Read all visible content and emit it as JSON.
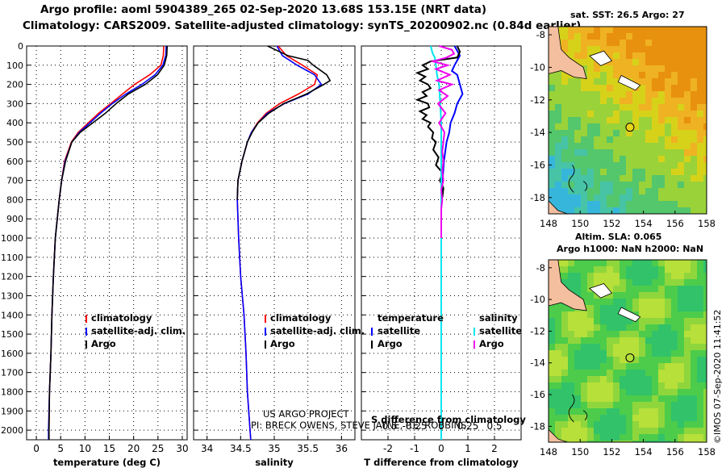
{
  "header": {
    "title_line1": "Argo profile: aoml 5904389_265 02-Sep-2020 13.68S 153.15E (NRT data)",
    "title_line2": "Climatology: CARS2009. Satellite-adjusted climatology: synTS_20200902.nc (0.84d earlier)"
  },
  "credit": "US ARGO PROJECT",
  "pi": "PI: BRECK OWENS, STEVE JAYNE, P.E. ROBBINS",
  "watermark": "©IMOS 07-Sep-2020 11:41:52",
  "colors": {
    "climatology": "#ff0000",
    "satellite": "#0000ff",
    "argo": "#000000",
    "sat_salinity": "#00e5ee",
    "argo_salinity": "#ee00ee",
    "land": "#f4bf9e"
  },
  "chart_data": [
    {
      "type": "line",
      "panel": "temperature",
      "xlabel": "temperature (deg C)",
      "ylabel": "depth",
      "xlim": [
        -2,
        31
      ],
      "ylim": [
        2050,
        0
      ],
      "xticks": [
        0,
        5,
        10,
        15,
        20,
        25,
        30
      ],
      "yticks": [
        0,
        100,
        200,
        300,
        400,
        500,
        600,
        700,
        800,
        900,
        1000,
        1100,
        1200,
        1300,
        1400,
        1500,
        1600,
        1700,
        1800,
        1900,
        2000
      ],
      "legend": [
        "climatology",
        "satellite-adj. clim.",
        "Argo"
      ],
      "series": [
        {
          "name": "climatology",
          "depth": [
            0,
            50,
            100,
            150,
            200,
            250,
            300,
            350,
            400,
            450,
            500,
            600,
            700,
            800,
            900,
            1000,
            1200,
            1400,
            1600,
            1800,
            2000,
            2050
          ],
          "values": [
            26.2,
            26.1,
            25.6,
            23.3,
            20.2,
            17.7,
            15.3,
            12.8,
            10.7,
            8.6,
            7.2,
            5.8,
            5.2,
            4.7,
            4.3,
            3.9,
            3.5,
            3.2,
            3.0,
            2.7,
            2.6,
            2.6
          ]
        },
        {
          "name": "satellite-adj. clim.",
          "depth": [
            0,
            50,
            100,
            150,
            200,
            250,
            300,
            350,
            400,
            450,
            500,
            600,
            700,
            800,
            900,
            1000,
            1200,
            1400,
            1600,
            1800,
            2000,
            2050
          ],
          "values": [
            26.7,
            26.6,
            26.0,
            24.4,
            21.7,
            18.4,
            15.6,
            13.2,
            11.0,
            8.8,
            7.3,
            5.9,
            5.2,
            4.7,
            4.3,
            3.9,
            3.5,
            3.2,
            3.0,
            2.7,
            2.5,
            2.5
          ]
        },
        {
          "name": "Argo",
          "depth": [
            0,
            50,
            100,
            150,
            200,
            250,
            300,
            350,
            400,
            450,
            500,
            600,
            700,
            800,
            900,
            1000,
            1200,
            1400,
            1600,
            1800,
            2000,
            2050
          ],
          "values": [
            26.9,
            26.8,
            26.3,
            24.9,
            22.4,
            18.9,
            16.4,
            14.2,
            11.6,
            9.0,
            7.3,
            6.0,
            5.2,
            4.7,
            4.3,
            3.9,
            3.5,
            3.2,
            3.0,
            2.7,
            2.6,
            2.6
          ]
        }
      ]
    },
    {
      "type": "line",
      "panel": "salinity",
      "xlabel": "salinity",
      "ylabel": "depth",
      "xlim": [
        33.8,
        36.2
      ],
      "ylim": [
        2050,
        0
      ],
      "xticks": [
        34,
        34.5,
        35,
        35.5,
        36
      ],
      "legend": [
        "climatology",
        "satellite-adj. clim.",
        "Argo"
      ],
      "series": [
        {
          "name": "climatology",
          "depth": [
            0,
            50,
            100,
            150,
            200,
            250,
            300,
            350,
            400,
            450,
            500,
            600,
            700,
            800,
            1000,
            1200,
            1400,
            1600,
            1800,
            2000,
            2050
          ],
          "values": [
            35.06,
            35.18,
            35.42,
            35.64,
            35.6,
            35.36,
            35.08,
            34.88,
            34.75,
            34.66,
            34.6,
            34.52,
            34.46,
            34.45,
            34.47,
            34.5,
            34.55,
            34.58,
            34.6,
            34.64,
            34.65
          ]
        },
        {
          "name": "satellite-adj. clim.",
          "depth": [
            0,
            50,
            100,
            150,
            200,
            250,
            300,
            350,
            400,
            450,
            500,
            600,
            700,
            800,
            1000,
            1200,
            1400,
            1600,
            1800,
            2000,
            2050
          ],
          "values": [
            35.04,
            35.12,
            35.34,
            35.6,
            35.7,
            35.5,
            35.15,
            34.9,
            34.76,
            34.66,
            34.6,
            34.52,
            34.46,
            34.45,
            34.47,
            34.5,
            34.55,
            34.58,
            34.6,
            34.64,
            34.65
          ]
        },
        {
          "name": "Argo",
          "depth": [
            0,
            25,
            50,
            75,
            100,
            150,
            180,
            200,
            250,
            300,
            350,
            400,
            450,
            500,
            600,
            700,
            800
          ],
          "values": [
            34.9,
            35.05,
            35.2,
            35.5,
            35.58,
            35.78,
            35.83,
            35.74,
            35.48,
            35.14,
            34.92,
            34.76,
            34.67,
            34.6,
            34.52,
            34.46,
            34.45
          ]
        }
      ]
    },
    {
      "type": "line",
      "panel": "difference",
      "xlabel": "T difference from climatology",
      "xlabel_top": "S difference from climatology",
      "xlim": [
        -3,
        3
      ],
      "ylim": [
        2050,
        0
      ],
      "xticks": [
        -2,
        -1,
        0,
        1,
        2
      ],
      "xticks_s": [
        -0.5,
        -0.25,
        0,
        0.25,
        0.5
      ],
      "legend_headers": [
        "temperature",
        "salinity"
      ],
      "legend_left": [
        "satellite",
        "Argo"
      ],
      "legend_right": [
        "satellite",
        "Argo"
      ],
      "series": [
        {
          "name": "T satellite",
          "depth": [
            0,
            50,
            100,
            130,
            150,
            200,
            250,
            300,
            350,
            400,
            450,
            500,
            550,
            600,
            700,
            800,
            1000,
            2050
          ],
          "values": [
            0.5,
            0.7,
            0.5,
            0.4,
            0.6,
            0.7,
            0.8,
            0.6,
            0.5,
            0.35,
            0.3,
            0.2,
            0.15,
            0.1,
            0.05,
            0,
            0,
            0
          ]
        },
        {
          "name": "T Argo",
          "depth": [
            0,
            30,
            60,
            80,
            100,
            120,
            140,
            160,
            180,
            200,
            220,
            240,
            260,
            280,
            300,
            320,
            340,
            360,
            380,
            400,
            420,
            450,
            480,
            500,
            540,
            580,
            620,
            660,
            700,
            740,
            780,
            800
          ],
          "values": [
            0.6,
            0.7,
            0.6,
            -0.4,
            -0.7,
            -0.5,
            -0.9,
            -0.6,
            -0.8,
            -0.5,
            -0.4,
            -0.7,
            -0.55,
            -0.9,
            -0.5,
            -0.45,
            -0.8,
            -0.55,
            -0.7,
            -0.4,
            -0.5,
            -0.3,
            -0.35,
            -0.2,
            -0.3,
            -0.1,
            -0.2,
            0.05,
            -0.05,
            0.08,
            0.05,
            0.02
          ]
        },
        {
          "name": "S satellite",
          "depth": [
            0,
            40,
            60,
            100,
            150,
            200,
            300,
            400,
            500,
            600,
            800,
            1000,
            2050
          ],
          "values": [
            -0.1,
            -0.08,
            -0.06,
            -0.05,
            -0.04,
            -0.02,
            -0.01,
            0,
            0,
            0,
            0,
            0,
            0
          ]
        },
        {
          "name": "S Argo",
          "depth": [
            0,
            20,
            40,
            60,
            80,
            100,
            120,
            150,
            180,
            200,
            230,
            260,
            300,
            350,
            400,
            450,
            500,
            550,
            600,
            650,
            700,
            750,
            800,
            850,
            900,
            950,
            1000
          ],
          "values": [
            -0.02,
            0.1,
            0.12,
            0.05,
            -0.08,
            0.06,
            -0.05,
            0.08,
            -0.04,
            0.1,
            -0.02,
            0.06,
            -0.03,
            0.04,
            -0.02,
            0.03,
            0.02,
            0.01,
            0.02,
            0.01,
            0.02,
            0.0,
            0.01,
            0.0,
            0.0,
            0.0,
            0.0
          ]
        }
      ]
    },
    {
      "type": "heatmap",
      "panel": "map-sst",
      "title": "sat. SST: 26.5 Argo: 27",
      "lon_range": [
        148,
        158
      ],
      "lat_range": [
        -19,
        -7.5
      ],
      "xticks": [
        148,
        150,
        152,
        154,
        156,
        158
      ],
      "yticks": [
        -8,
        -10,
        -12,
        -14,
        -16,
        -18
      ],
      "argo_position": {
        "lon": 153.15,
        "lat": -13.68
      }
    },
    {
      "type": "heatmap",
      "panel": "map-sla",
      "title": "Altim. SLA: 0.065",
      "subtitle": "Argo h1000: NaN h2000: NaN",
      "lon_range": [
        148,
        158
      ],
      "lat_range": [
        -19,
        -7.5
      ],
      "xticks": [
        148,
        150,
        152,
        154,
        156,
        158
      ],
      "yticks": [
        -8,
        -10,
        -12,
        -14,
        -16,
        -18
      ],
      "argo_position": {
        "lon": 153.15,
        "lat": -13.68
      }
    }
  ]
}
